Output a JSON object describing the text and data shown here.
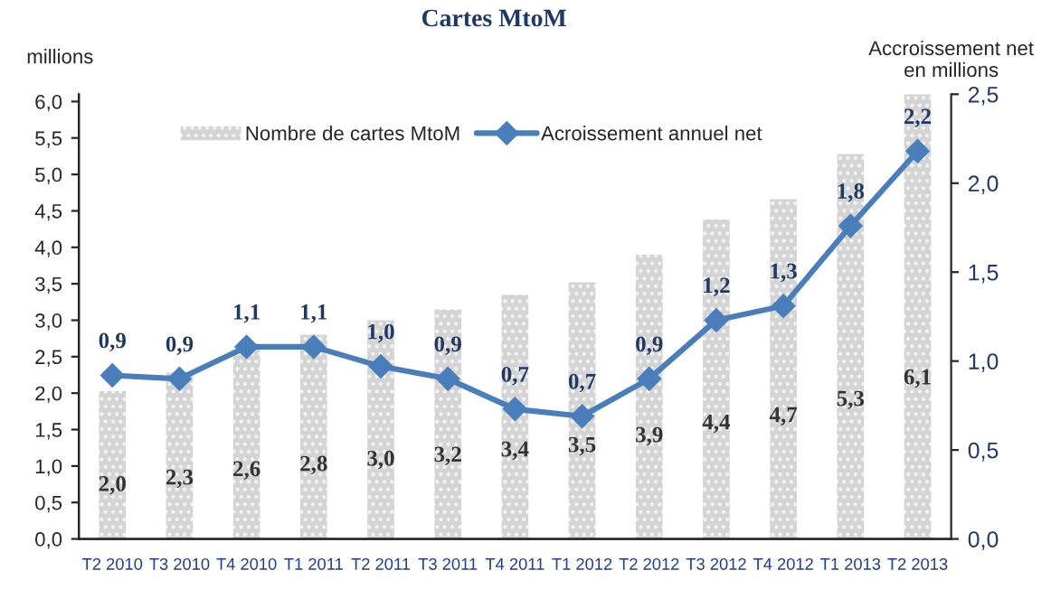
{
  "chart_data": {
    "type": "bar",
    "title": "Cartes MtoM",
    "ylabel": "millions",
    "y2label": "Accroissement net\nen millions",
    "categories": [
      "T2 2010",
      "T3 2010",
      "T4 2010",
      "T1 2011",
      "T2 2011",
      "T3 2011",
      "T4 2011",
      "T1 2012",
      "T2 2012",
      "T3 2012",
      "T4 2012",
      "T1 2013",
      "T2 2013"
    ],
    "series": [
      {
        "name": "Nombre de cartes MtoM",
        "color": "#d4d4d4",
        "values": [
          2.03,
          2.28,
          2.6,
          2.8,
          3.0,
          3.15,
          3.35,
          3.52,
          3.9,
          4.38,
          4.66,
          5.28,
          6.1
        ],
        "value_labels": [
          "2,0",
          "2,3",
          "2,6",
          "2,8",
          "3,0",
          "3,2",
          "3,4",
          "3,5",
          "3,9",
          "4,4",
          "4,7",
          "5,3",
          "6,1"
        ]
      },
      {
        "name": "Acroissement annuel net",
        "type": "line",
        "axis": "y2",
        "color": "#4a7ebb",
        "marker": "diamond",
        "values": [
          0.92,
          0.9,
          1.08,
          1.08,
          0.97,
          0.9,
          0.73,
          0.69,
          0.9,
          1.23,
          1.31,
          1.76,
          2.18
        ],
        "value_labels": [
          "0,9",
          "0,9",
          "1,1",
          "1,1",
          "1,0",
          "0,9",
          "0,7",
          "0,7",
          "0,9",
          "1,2",
          "1,3",
          "1,8",
          "2,2"
        ]
      }
    ],
    "ylim": [
      0,
      6.1
    ],
    "yticks": [
      {
        "value": 0,
        "label": "0,0"
      },
      {
        "value": 0.5,
        "label": "0,5"
      },
      {
        "value": 1,
        "label": "1,0"
      },
      {
        "value": 1.5,
        "label": "1,5"
      },
      {
        "value": 2,
        "label": "2,0"
      },
      {
        "value": 2.5,
        "label": "2,5"
      },
      {
        "value": 3,
        "label": "3,0"
      },
      {
        "value": 3.5,
        "label": "3,5"
      },
      {
        "value": 4,
        "label": "4,0"
      },
      {
        "value": 4.5,
        "label": "4,5"
      },
      {
        "value": 5,
        "label": "5,0"
      },
      {
        "value": 5.5,
        "label": "5,5"
      },
      {
        "value": 6,
        "label": "6,0"
      }
    ],
    "y2lim": [
      0,
      2.5
    ],
    "y2ticks": [
      {
        "value": 0,
        "label": "0,0"
      },
      {
        "value": 0.5,
        "label": "0,5"
      },
      {
        "value": 1,
        "label": "1,0"
      },
      {
        "value": 1.5,
        "label": "1,5"
      },
      {
        "value": 2,
        "label": "2,0"
      },
      {
        "value": 2.5,
        "label": "2,5"
      }
    ],
    "legend": "top",
    "grid": false
  }
}
